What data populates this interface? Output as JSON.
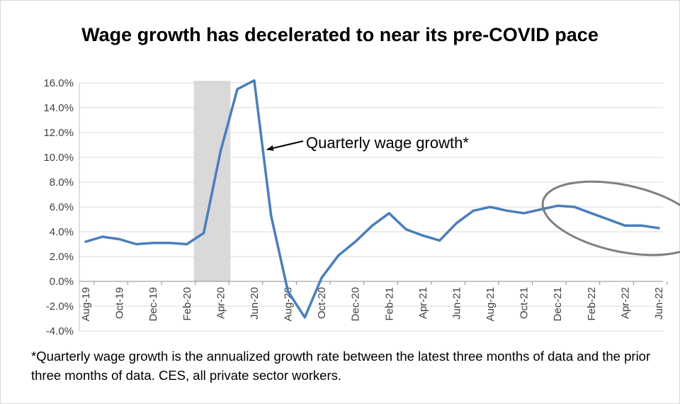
{
  "title": "Wage growth has decelerated to near its pre-COVID pace",
  "footnote": "*Quarterly wage growth is the annualized growth rate between the latest three months of data and the prior three months of data. CES, all private sector workers.",
  "chart_data": {
    "type": "line",
    "title": "Wage growth has decelerated to near its pre-COVID pace",
    "xlabel": "",
    "ylabel": "",
    "ylim": [
      -4.0,
      16.0
    ],
    "y_ticks": [
      "16.0%",
      "14.0%",
      "12.0%",
      "10.0%",
      "8.0%",
      "6.0%",
      "4.0%",
      "2.0%",
      "0.0%",
      "-2.0%",
      "-4.0%"
    ],
    "y_tick_values": [
      16,
      14,
      12,
      10,
      8,
      6,
      4,
      2,
      0,
      -2,
      -4
    ],
    "grid": true,
    "x": [
      "Aug-19",
      "Sep-19",
      "Oct-19",
      "Nov-19",
      "Dec-19",
      "Jan-20",
      "Feb-20",
      "Mar-20",
      "Apr-20",
      "May-20",
      "Jun-20",
      "Jul-20",
      "Aug-20",
      "Sep-20",
      "Oct-20",
      "Nov-20",
      "Dec-20",
      "Jan-21",
      "Feb-21",
      "Mar-21",
      "Apr-21",
      "May-21",
      "Jun-21",
      "Jul-21",
      "Aug-21",
      "Sep-21",
      "Oct-21",
      "Nov-21",
      "Dec-21",
      "Jan-22",
      "Feb-22",
      "Mar-22",
      "Apr-22",
      "May-22",
      "Jun-22"
    ],
    "x_tick_labels": [
      "Aug-19",
      "Oct-19",
      "Dec-19",
      "Feb-20",
      "Apr-20",
      "Jun-20",
      "Aug-20",
      "Oct-20",
      "Dec-20",
      "Feb-21",
      "Apr-21",
      "Jun-21",
      "Aug-21",
      "Oct-21",
      "Dec-21",
      "Feb-22",
      "Apr-22",
      "Jun-22"
    ],
    "series": [
      {
        "name": "Quarterly wage growth*",
        "color": "#4a7ebb",
        "values": [
          3.2,
          3.6,
          3.4,
          3.0,
          3.1,
          3.1,
          3.0,
          3.9,
          10.5,
          15.5,
          16.2,
          5.3,
          -0.8,
          -2.9,
          0.3,
          2.1,
          3.2,
          4.5,
          5.5,
          4.2,
          3.7,
          3.3,
          4.7,
          5.7,
          6.0,
          5.7,
          5.5,
          5.8,
          6.1,
          6.0,
          5.5,
          5.0,
          4.5,
          4.5,
          4.3
        ]
      }
    ],
    "shaded_period": {
      "from": "Mar-20",
      "to": "Apr-20",
      "color": "#d9d9d9"
    },
    "annotation": {
      "text": "Quarterly wage growth*",
      "points_to": "Jul-20"
    },
    "highlight_ellipse": {
      "from": "Jan-22",
      "to": "Jun-22",
      "color": "#7f7f7f"
    },
    "colors": {
      "line": "#4a7ebb",
      "grid": "#d9d9d9",
      "axis": "#404040",
      "shade": "#d9d9d9",
      "ellipse": "#7f7f7f"
    }
  }
}
